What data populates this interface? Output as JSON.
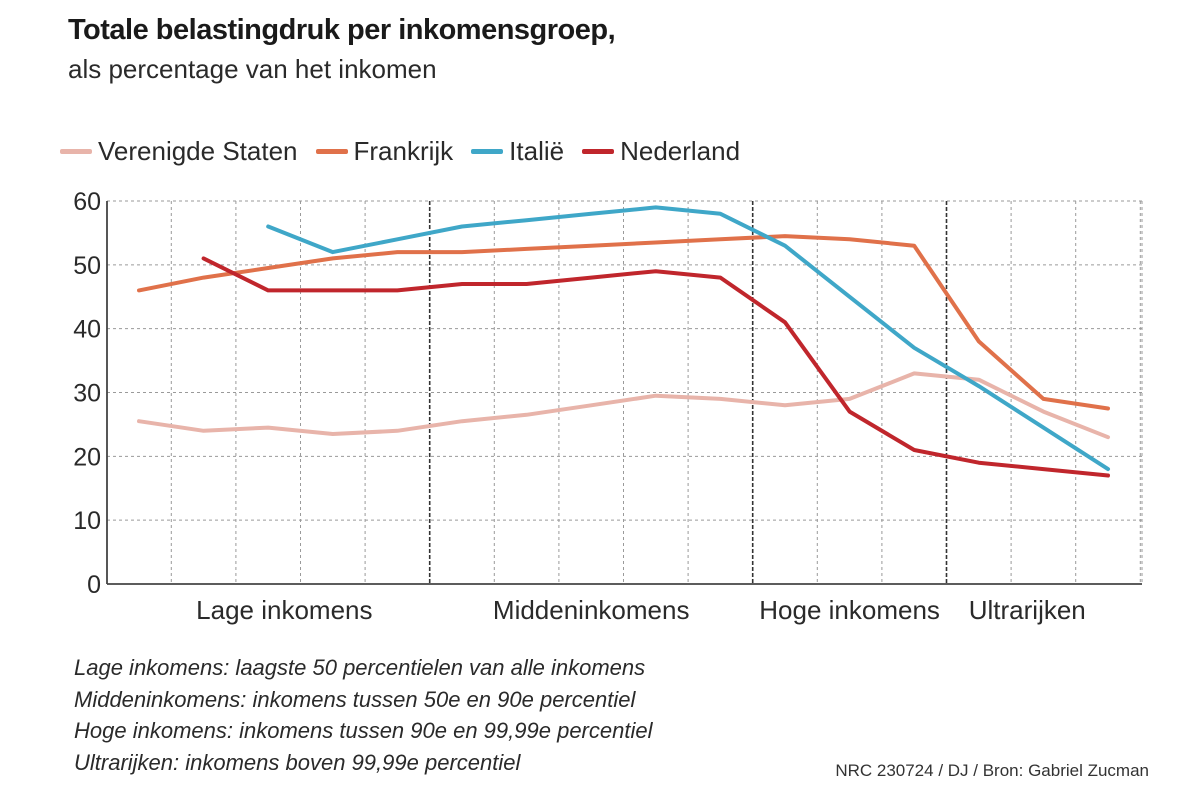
{
  "header": {
    "title": "Totale belastingdruk per inkomensgroep,",
    "subtitle": "als percentage van het inkomen"
  },
  "legend": [
    {
      "label": "Verenigde Staten",
      "color": "#e8b4aa"
    },
    {
      "label": "Frankrijk",
      "color": "#e0714a"
    },
    {
      "label": "Italië",
      "color": "#3fa7c8"
    },
    {
      "label": "Nederland",
      "color": "#c0262c"
    }
  ],
  "notes": [
    "Lage inkomens: laagste 50 percentielen van alle inkomens",
    "Middeninkomens: inkomens tussen 50e en 90e percentiel",
    "Hoge inkomens: inkomens tussen 90e en 99,99e percentiel",
    "Ultrarijken: inkomens boven 99,99e percentiel"
  ],
  "source": "NRC 230724 / DJ / Bron: Gabriel Zucman",
  "chart_data": {
    "type": "line",
    "title": "Totale belastingdruk per inkomensgroep,",
    "subtitle": "als percentage van het inkomen",
    "x_positions": 16,
    "ylim": [
      0,
      60
    ],
    "yticks": [
      0,
      10,
      20,
      30,
      40,
      50,
      60
    ],
    "grid": true,
    "groups": [
      {
        "label": "Lage inkomens",
        "from": 0,
        "to": 4.5
      },
      {
        "label": "Middeninkomens",
        "from": 4.5,
        "to": 9.5
      },
      {
        "label": "Hoge inkomens",
        "from": 9.5,
        "to": 12.5
      },
      {
        "label": "Ultrarijken",
        "from": 12.5,
        "to": 15
      }
    ],
    "series": [
      {
        "name": "Verenigde Staten",
        "color": "#e8b4aa",
        "x": [
          0,
          1,
          2,
          3,
          4,
          5,
          6,
          7,
          8,
          9,
          10,
          11,
          12,
          13,
          14,
          15
        ],
        "values": [
          25.5,
          24,
          24.5,
          23.5,
          24,
          25.5,
          26.5,
          28,
          29.5,
          29,
          28,
          29,
          33,
          32,
          27,
          23
        ]
      },
      {
        "name": "Frankrijk",
        "color": "#e0714a",
        "x": [
          0,
          1,
          2,
          3,
          4,
          5,
          6,
          7,
          8,
          9,
          10,
          11,
          12,
          13,
          14,
          15
        ],
        "values": [
          46,
          48,
          49.5,
          51,
          52,
          52,
          52.5,
          53,
          53.5,
          54,
          54.5,
          54,
          53,
          38,
          29,
          27.5
        ]
      },
      {
        "name": "Italië",
        "color": "#3fa7c8",
        "x": [
          2,
          3,
          4,
          5,
          6,
          7,
          8,
          9,
          10,
          11,
          12,
          13,
          14,
          15
        ],
        "values": [
          56,
          52,
          54,
          56,
          57,
          58,
          59,
          58,
          53,
          45,
          37,
          31,
          24.5,
          18
        ]
      },
      {
        "name": "Nederland",
        "color": "#c0262c",
        "x": [
          1,
          2,
          3,
          4,
          5,
          6,
          7,
          8,
          9,
          10,
          11,
          12,
          13,
          14,
          15
        ],
        "values": [
          51,
          46,
          46,
          46,
          47,
          47,
          48,
          49,
          48,
          41,
          27,
          21,
          19,
          18,
          17
        ]
      }
    ]
  }
}
